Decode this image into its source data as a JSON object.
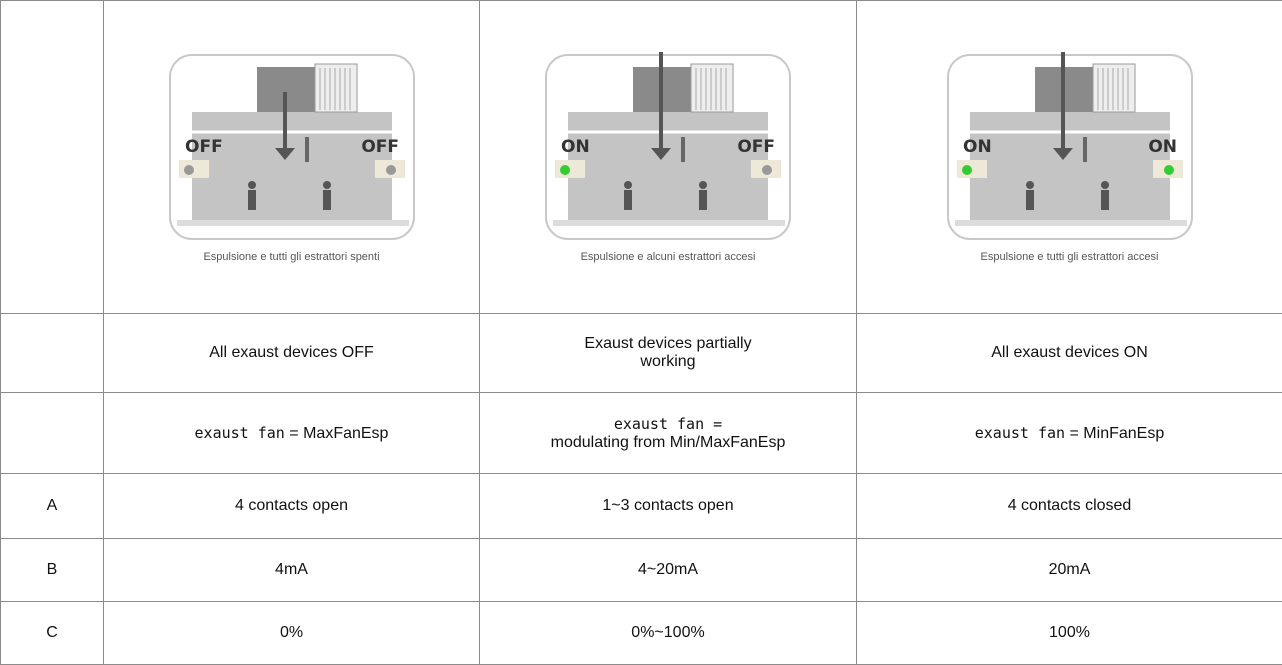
{
  "table": {
    "images": [
      {
        "left": "OFF",
        "right": "OFF",
        "caption": "Espulsione e tutti gli estrattori spenti"
      },
      {
        "left": "ON",
        "right": "OFF",
        "caption": "Espulsione e alcuni estrattori accesi"
      },
      {
        "left": "ON",
        "right": "ON",
        "caption": "Espulsione e tutti gli estrattori accesi"
      }
    ],
    "modes": [
      "All exaust devices OFF",
      "Exaust devices partially working",
      "All exaust devices ON"
    ],
    "fan": [
      {
        "name": "exaust fan",
        "setting": "= MaxFanEsp"
      },
      {
        "name": "exaust fan =",
        "setting": "modulating from Min/MaxFanEsp"
      },
      {
        "name": "exaust fan",
        "setting": "= MinFanEsp"
      }
    ],
    "rows": [
      {
        "label": "A",
        "cells": [
          "4 contacts open",
          "1~3 contacts open",
          "4 contacts closed"
        ]
      },
      {
        "label": "B",
        "cells": [
          "4mA",
          "4~20mA",
          "20mA"
        ]
      },
      {
        "label": "C",
        "cells": [
          "0%",
          "0%~100%",
          "100%"
        ]
      }
    ]
  }
}
